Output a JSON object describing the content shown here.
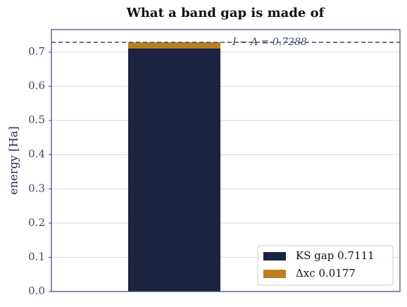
{
  "chart_data": {
    "type": "stacked-bar",
    "title": "What a band gap is made of",
    "y_label": "energy  [Ha]",
    "categories": [
      null
    ],
    "series": [
      {
        "name": "KS gap  0.7111",
        "color": "#1b2340",
        "values": [
          0.7111
        ]
      },
      {
        "name": "Δxc  0.0177",
        "color": "#b8801f",
        "values": [
          0.0177
        ]
      }
    ],
    "reference_line": {
      "value": 0.7288,
      "label": "I − A = 0.7288",
      "color": "#3b4a6b"
    },
    "ylim": [
      0,
      0.766
    ],
    "yticks": [
      {
        "value": 0,
        "label": "0.0"
      },
      0.1,
      0.2,
      0.3,
      0.4,
      0.5,
      0.6,
      0.7
    ],
    "grid": true,
    "legend": "lower right"
  }
}
